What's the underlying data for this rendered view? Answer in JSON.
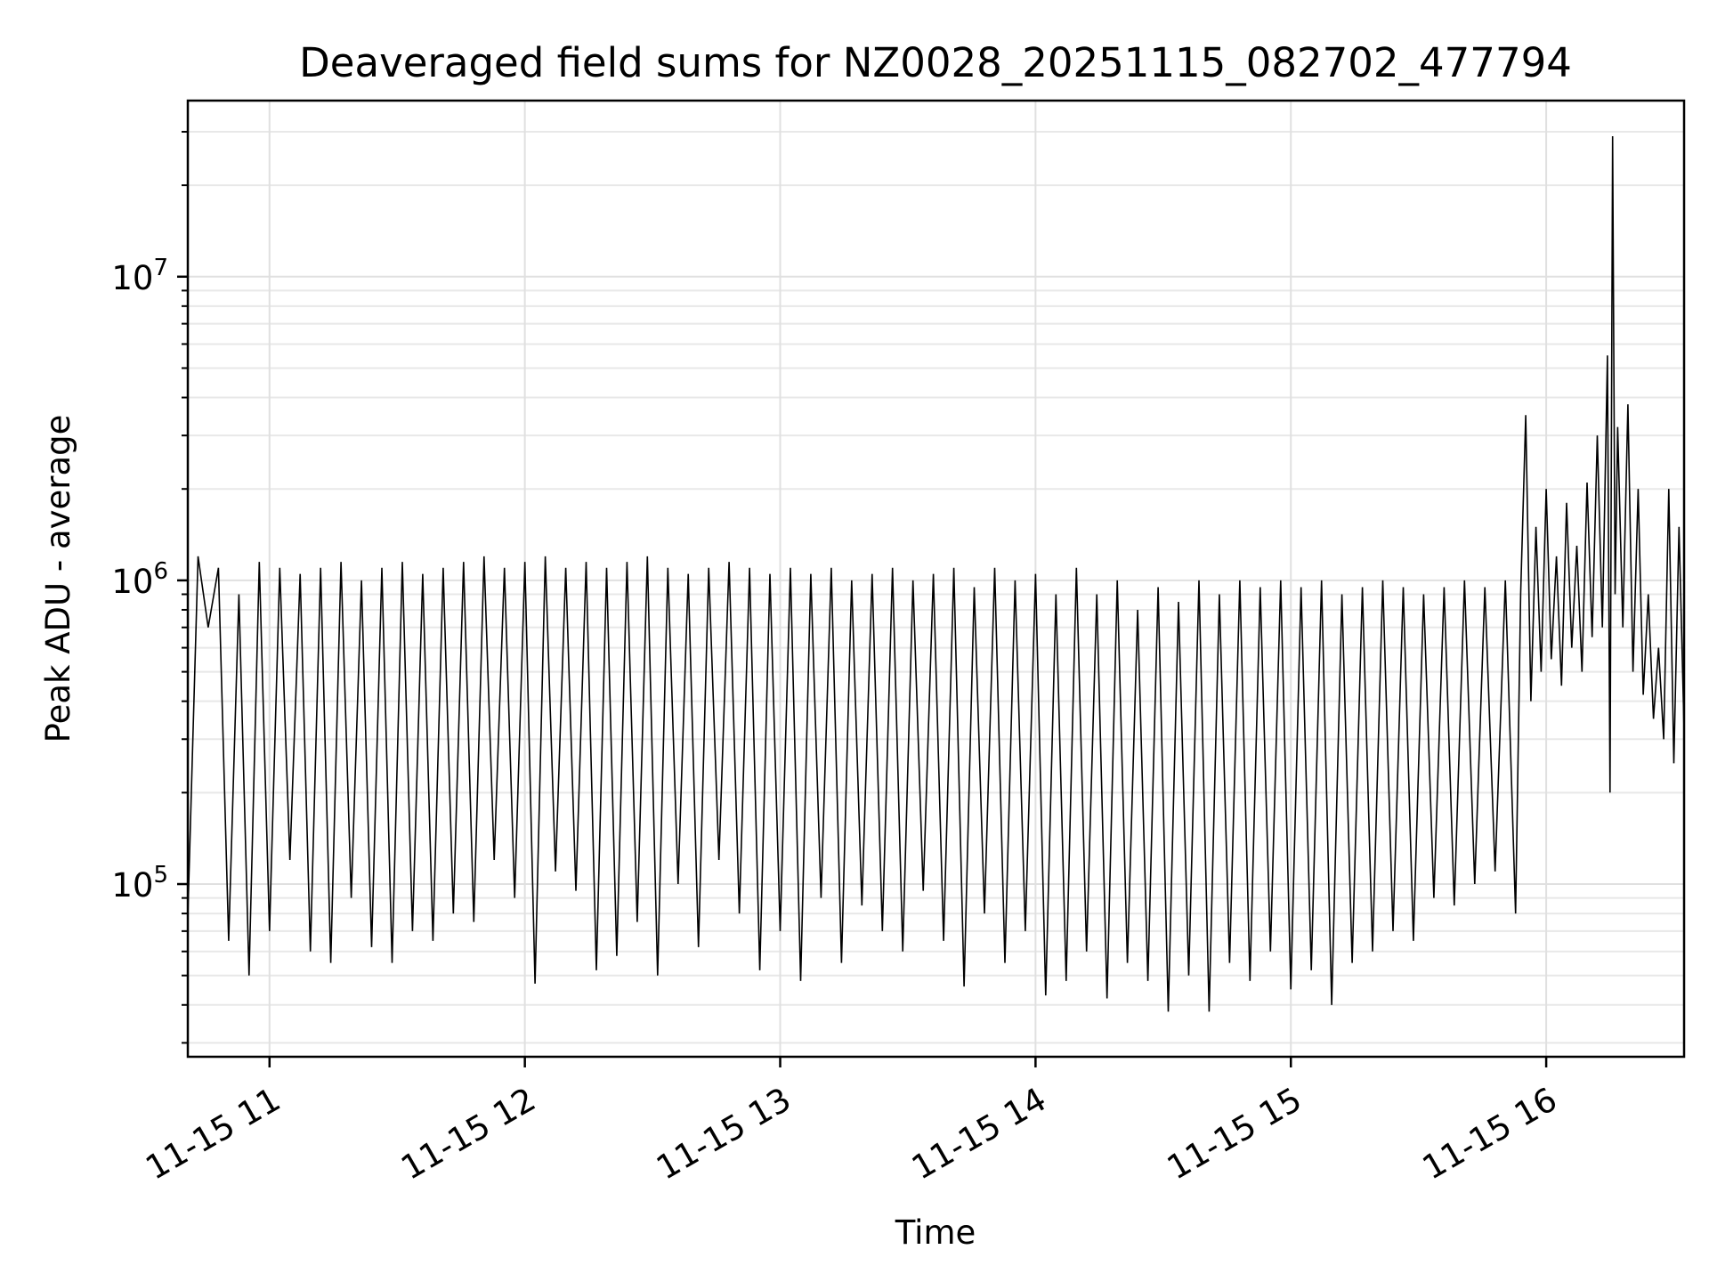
{
  "chart_data": {
    "type": "line",
    "title": "Deaveraged field sums for NZ0028_20251115_082702_477794",
    "xlabel": "Time",
    "ylabel": "Peak ADU - average",
    "x_ticks": [
      "11-15 11",
      "11-15 12",
      "11-15 13",
      "11-15 14",
      "11-15 15",
      "11-15 16"
    ],
    "y_tick_labels": [
      {
        "base": "10",
        "exp": "5",
        "value": 100000
      },
      {
        "base": "10",
        "exp": "6",
        "value": 1000000
      },
      {
        "base": "10",
        "exp": "7",
        "value": 10000000
      }
    ],
    "y_scale": "log",
    "ylim": [
      27000,
      38000000
    ],
    "xlim_hours": [
      10.68,
      16.54
    ],
    "grid": true,
    "line_color": "#000000",
    "series": [
      {
        "points": [
          [
            10.68,
            78000
          ],
          [
            10.72,
            1200000
          ],
          [
            10.76,
            700000
          ],
          [
            10.8,
            1100000
          ],
          [
            10.84,
            65000
          ],
          [
            10.88,
            900000
          ],
          [
            10.92,
            50000
          ],
          [
            10.96,
            1150000
          ],
          [
            11.0,
            70000
          ],
          [
            11.04,
            1100000
          ],
          [
            11.08,
            120000
          ],
          [
            11.12,
            1050000
          ],
          [
            11.16,
            60000
          ],
          [
            11.2,
            1100000
          ],
          [
            11.24,
            55000
          ],
          [
            11.28,
            1150000
          ],
          [
            11.32,
            90000
          ],
          [
            11.36,
            1000000
          ],
          [
            11.4,
            62000
          ],
          [
            11.44,
            1100000
          ],
          [
            11.48,
            55000
          ],
          [
            11.52,
            1150000
          ],
          [
            11.56,
            70000
          ],
          [
            11.6,
            1050000
          ],
          [
            11.64,
            65000
          ],
          [
            11.68,
            1100000
          ],
          [
            11.72,
            80000
          ],
          [
            11.76,
            1150000
          ],
          [
            11.8,
            75000
          ],
          [
            11.84,
            1200000
          ],
          [
            11.88,
            120000
          ],
          [
            11.92,
            1100000
          ],
          [
            11.96,
            90000
          ],
          [
            12.0,
            1150000
          ],
          [
            12.04,
            47000
          ],
          [
            12.08,
            1200000
          ],
          [
            12.12,
            110000
          ],
          [
            12.16,
            1100000
          ],
          [
            12.2,
            95000
          ],
          [
            12.24,
            1150000
          ],
          [
            12.28,
            52000
          ],
          [
            12.32,
            1100000
          ],
          [
            12.36,
            58000
          ],
          [
            12.4,
            1150000
          ],
          [
            12.44,
            75000
          ],
          [
            12.48,
            1200000
          ],
          [
            12.52,
            50000
          ],
          [
            12.56,
            1100000
          ],
          [
            12.6,
            100000
          ],
          [
            12.64,
            1050000
          ],
          [
            12.68,
            62000
          ],
          [
            12.72,
            1100000
          ],
          [
            12.76,
            120000
          ],
          [
            12.8,
            1150000
          ],
          [
            12.84,
            80000
          ],
          [
            12.88,
            1100000
          ],
          [
            12.92,
            52000
          ],
          [
            12.96,
            1050000
          ],
          [
            13.0,
            70000
          ],
          [
            13.04,
            1100000
          ],
          [
            13.08,
            48000
          ],
          [
            13.12,
            1050000
          ],
          [
            13.16,
            90000
          ],
          [
            13.2,
            1100000
          ],
          [
            13.24,
            55000
          ],
          [
            13.28,
            1000000
          ],
          [
            13.32,
            85000
          ],
          [
            13.36,
            1050000
          ],
          [
            13.4,
            70000
          ],
          [
            13.44,
            1100000
          ],
          [
            13.48,
            60000
          ],
          [
            13.52,
            1000000
          ],
          [
            13.56,
            95000
          ],
          [
            13.6,
            1050000
          ],
          [
            13.64,
            65000
          ],
          [
            13.68,
            1100000
          ],
          [
            13.72,
            46000
          ],
          [
            13.76,
            950000
          ],
          [
            13.8,
            80000
          ],
          [
            13.84,
            1100000
          ],
          [
            13.88,
            55000
          ],
          [
            13.92,
            1000000
          ],
          [
            13.96,
            70000
          ],
          [
            14.0,
            1050000
          ],
          [
            14.04,
            43000
          ],
          [
            14.08,
            900000
          ],
          [
            14.12,
            48000
          ],
          [
            14.16,
            1100000
          ],
          [
            14.2,
            60000
          ],
          [
            14.24,
            900000
          ],
          [
            14.28,
            42000
          ],
          [
            14.32,
            1000000
          ],
          [
            14.36,
            55000
          ],
          [
            14.4,
            800000
          ],
          [
            14.44,
            48000
          ],
          [
            14.48,
            950000
          ],
          [
            14.52,
            38000
          ],
          [
            14.56,
            850000
          ],
          [
            14.6,
            50000
          ],
          [
            14.64,
            1000000
          ],
          [
            14.68,
            38000
          ],
          [
            14.72,
            900000
          ],
          [
            14.76,
            55000
          ],
          [
            14.8,
            1000000
          ],
          [
            14.84,
            48000
          ],
          [
            14.88,
            950000
          ],
          [
            14.92,
            60000
          ],
          [
            14.96,
            1000000
          ],
          [
            15.0,
            45000
          ],
          [
            15.04,
            950000
          ],
          [
            15.08,
            52000
          ],
          [
            15.12,
            1000000
          ],
          [
            15.16,
            40000
          ],
          [
            15.2,
            900000
          ],
          [
            15.24,
            55000
          ],
          [
            15.28,
            950000
          ],
          [
            15.32,
            60000
          ],
          [
            15.36,
            1000000
          ],
          [
            15.4,
            70000
          ],
          [
            15.44,
            950000
          ],
          [
            15.48,
            65000
          ],
          [
            15.52,
            900000
          ],
          [
            15.56,
            90000
          ],
          [
            15.6,
            950000
          ],
          [
            15.64,
            85000
          ],
          [
            15.68,
            1000000
          ],
          [
            15.72,
            100000
          ],
          [
            15.76,
            950000
          ],
          [
            15.8,
            110000
          ],
          [
            15.84,
            1000000
          ],
          [
            15.88,
            80000
          ],
          [
            15.9,
            900000
          ],
          [
            15.92,
            3500000
          ],
          [
            15.94,
            400000
          ],
          [
            15.96,
            1500000
          ],
          [
            15.98,
            500000
          ],
          [
            16.0,
            2000000
          ],
          [
            16.02,
            550000
          ],
          [
            16.04,
            1200000
          ],
          [
            16.06,
            450000
          ],
          [
            16.08,
            1800000
          ],
          [
            16.1,
            600000
          ],
          [
            16.12,
            1300000
          ],
          [
            16.14,
            500000
          ],
          [
            16.16,
            2100000
          ],
          [
            16.18,
            650000
          ],
          [
            16.2,
            3000000
          ],
          [
            16.22,
            700000
          ],
          [
            16.24,
            5500000
          ],
          [
            16.25,
            200000
          ],
          [
            16.26,
            29000000
          ],
          [
            16.27,
            900000
          ],
          [
            16.28,
            3200000
          ],
          [
            16.3,
            700000
          ],
          [
            16.32,
            3800000
          ],
          [
            16.34,
            500000
          ],
          [
            16.36,
            2000000
          ],
          [
            16.38,
            420000
          ],
          [
            16.4,
            900000
          ],
          [
            16.42,
            350000
          ],
          [
            16.44,
            600000
          ],
          [
            16.46,
            300000
          ],
          [
            16.48,
            2000000
          ],
          [
            16.5,
            250000
          ],
          [
            16.52,
            1500000
          ],
          [
            16.54,
            320000
          ]
        ]
      }
    ]
  }
}
